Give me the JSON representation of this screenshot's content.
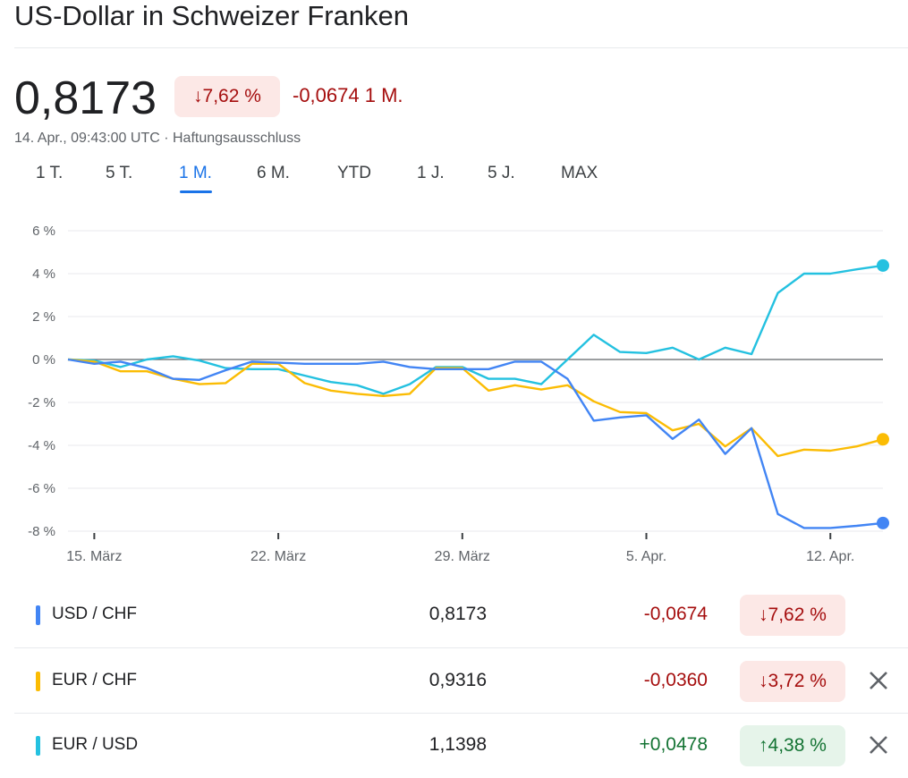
{
  "header": {
    "title": "US-Dollar in Schweizer Franken",
    "price": "0,8173",
    "pct_change": "7,62 %",
    "abs_change": "-0,0674 1 M.",
    "timestamp": "14. Apr., 09:43:00 UTC · Haftungsausschluss"
  },
  "tabs": [
    "1 T.",
    "5 T.",
    "1 M.",
    "6 M.",
    "YTD",
    "1 J.",
    "5 J.",
    "MAX"
  ],
  "active_tab": "1 M.",
  "colors": {
    "usd_chf": "#4285f4",
    "eur_chf": "#fbbc04",
    "eur_usd": "#24c1e0",
    "down": "#a50e0e",
    "up": "#137333"
  },
  "chart_data": {
    "type": "line",
    "ylim": [
      -8,
      6
    ],
    "y_ticks": [
      "6 %",
      "4 %",
      "2 %",
      "0 %",
      "-2 %",
      "-4 %",
      "-6 %",
      "-8 %"
    ],
    "y_tick_values": [
      6,
      4,
      2,
      0,
      -2,
      -4,
      -6,
      -8
    ],
    "x_ticks": [
      "15. März",
      "22. März",
      "29. März",
      "5. Apr.",
      "12. Apr."
    ],
    "x_tick_index": [
      1,
      8,
      15,
      22,
      29
    ],
    "grid": true,
    "series": [
      {
        "name": "USD / CHF",
        "color": "#4285f4",
        "values": [
          0,
          -0.2,
          -0.1,
          -0.4,
          -0.9,
          -0.95,
          -0.5,
          -0.1,
          -0.15,
          -0.2,
          -0.2,
          -0.2,
          -0.1,
          -0.35,
          -0.45,
          -0.45,
          -0.45,
          -0.1,
          -0.1,
          -0.9,
          -2.85,
          -2.7,
          -2.6,
          -3.7,
          -2.8,
          -4.4,
          -3.2,
          -7.2,
          -7.85,
          -7.85,
          -7.75,
          -7.62
        ]
      },
      {
        "name": "EUR / CHF",
        "color": "#fbbc04",
        "values": [
          0,
          -0.1,
          -0.55,
          -0.55,
          -0.9,
          -1.15,
          -1.1,
          -0.2,
          -0.2,
          -1.1,
          -1.45,
          -1.6,
          -1.7,
          -1.6,
          -0.4,
          -0.4,
          -1.45,
          -1.2,
          -1.4,
          -1.2,
          -1.95,
          -2.45,
          -2.5,
          -3.3,
          -3.0,
          -4.05,
          -3.2,
          -4.5,
          -4.2,
          -4.25,
          -4.05,
          -3.72
        ]
      },
      {
        "name": "EUR / USD",
        "color": "#24c1e0",
        "values": [
          0,
          -0.05,
          -0.35,
          0,
          0.15,
          -0.05,
          -0.4,
          -0.45,
          -0.45,
          -0.75,
          -1.05,
          -1.2,
          -1.6,
          -1.15,
          -0.35,
          -0.35,
          -0.9,
          -0.9,
          -1.15,
          0,
          1.15,
          0.35,
          0.3,
          0.55,
          0,
          0.55,
          0.25,
          3.1,
          4.0,
          4.0,
          4.2,
          4.38
        ]
      }
    ]
  },
  "table": [
    {
      "pair": "USD / CHF",
      "value": "0,8173",
      "change": "-0,0674",
      "pct": "7,62 %",
      "direction": "down",
      "arrow": "↓",
      "color": "#4285f4",
      "removable": false
    },
    {
      "pair": "EUR / CHF",
      "value": "0,9316",
      "change": "-0,0360",
      "pct": "3,72 %",
      "direction": "down",
      "arrow": "↓",
      "color": "#fbbc04",
      "removable": true
    },
    {
      "pair": "EUR / USD",
      "value": "1,1398",
      "change": "+0,0478",
      "pct": "4,38 %",
      "direction": "up",
      "arrow": "↑",
      "color": "#24c1e0",
      "removable": true
    }
  ]
}
